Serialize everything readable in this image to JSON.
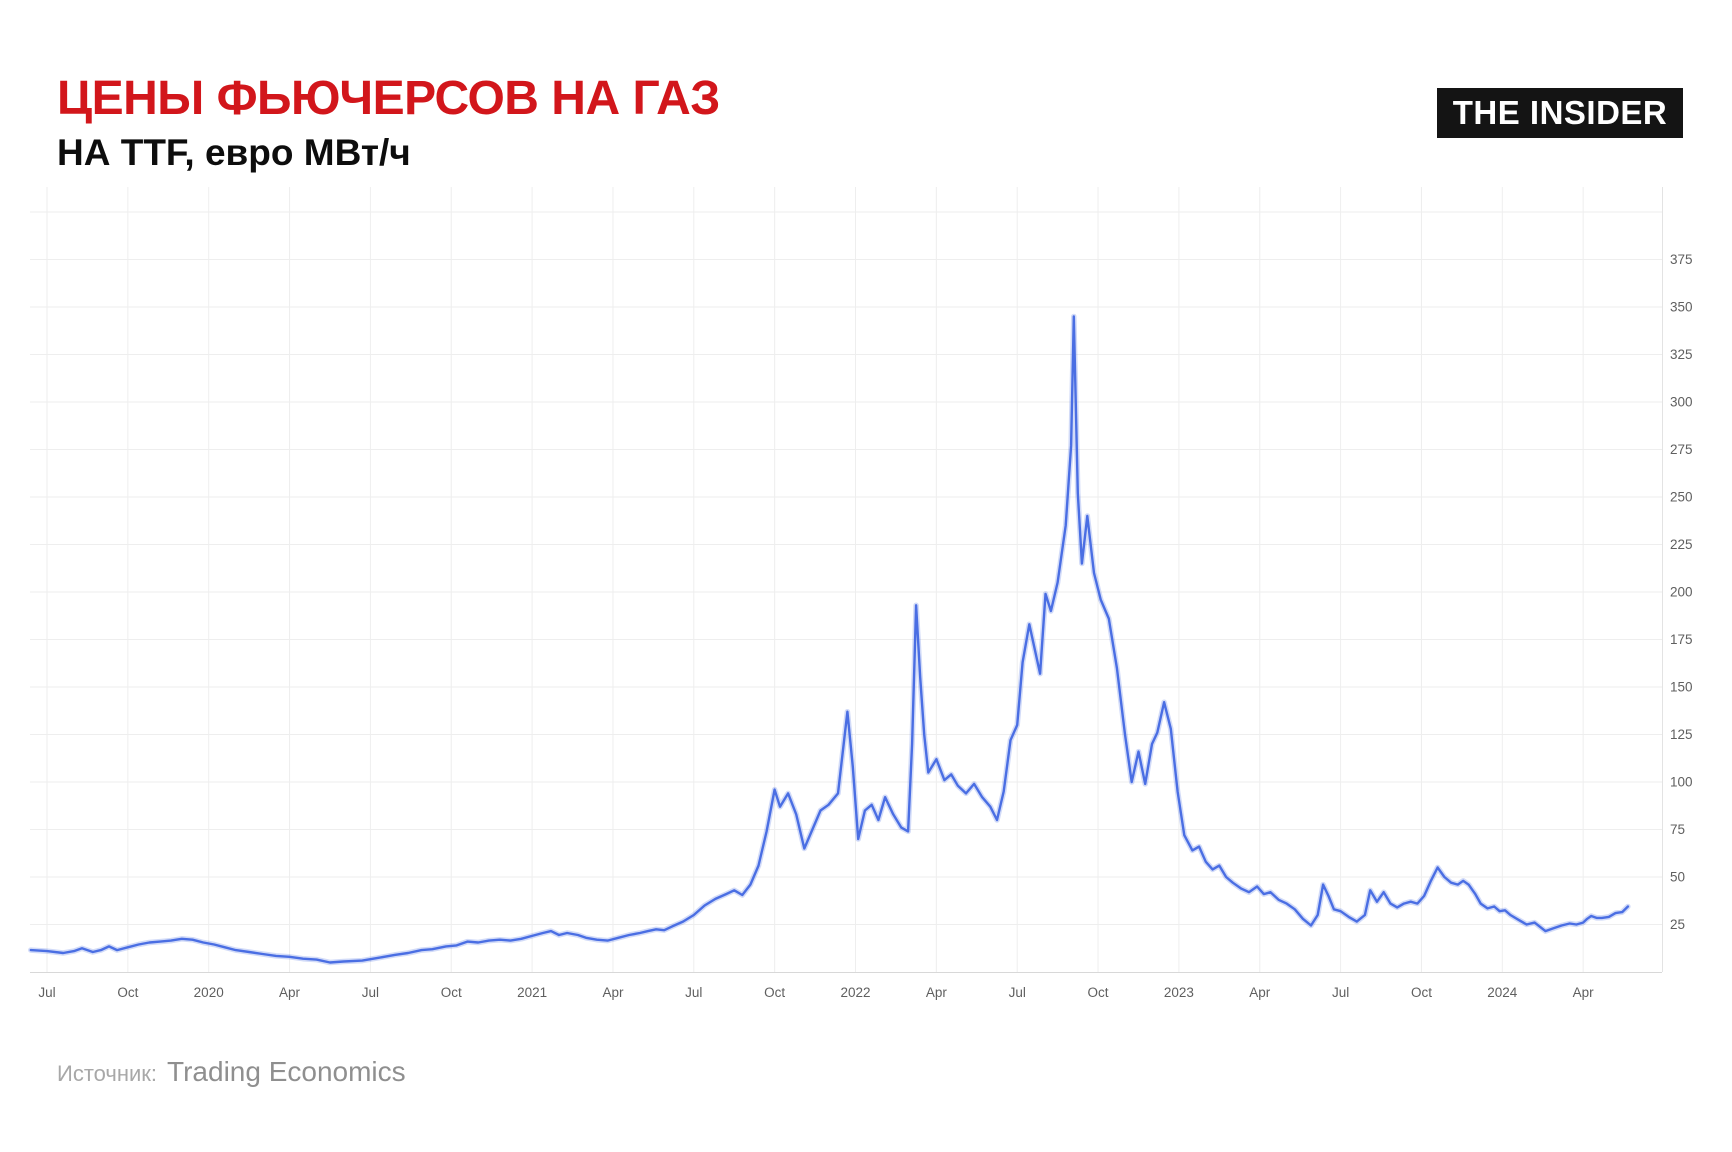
{
  "header": {
    "title": "ЦЕНЫ ФЬЮЧЕРСОВ НА ГАЗ",
    "subtitle": "НА TTF, евро МВт/ч",
    "logo_text": "THE INSIDER"
  },
  "footer": {
    "source_label": "Источник:",
    "source_name": "Trading Economics"
  },
  "colors": {
    "title_red": "#d2161b",
    "line_blue": "#4a6ee3",
    "grid": "#eeeeee",
    "axis_bottom": "#d8d8d8",
    "axis_right": "#e3e3e3",
    "tick_text": "#5f5f5f",
    "logo_bg": "#141414",
    "logo_text": "#ffffff",
    "source_label_color": "#a8a8a8",
    "source_name_color": "#8f8f8f"
  },
  "chart_data": {
    "type": "line",
    "title": "Цены фьючерсов на газ на TTF",
    "ylabel": "евро/МВт·ч",
    "xlabel": "",
    "x_unit": "months since 2019-07-01",
    "ylim": [
      0,
      410
    ],
    "grid": true,
    "legend": "none",
    "y_ticks": [
      25,
      50,
      75,
      100,
      125,
      150,
      175,
      200,
      225,
      250,
      275,
      300,
      325,
      350,
      375
    ],
    "x_ticks": [
      {
        "t": 0,
        "label": "Jul"
      },
      {
        "t": 3,
        "label": "Oct"
      },
      {
        "t": 6,
        "label": "2020"
      },
      {
        "t": 9,
        "label": "Apr"
      },
      {
        "t": 12,
        "label": "Jul"
      },
      {
        "t": 15,
        "label": "Oct"
      },
      {
        "t": 18,
        "label": "2021"
      },
      {
        "t": 21,
        "label": "Apr"
      },
      {
        "t": 24,
        "label": "Jul"
      },
      {
        "t": 27,
        "label": "Oct"
      },
      {
        "t": 30,
        "label": "2022"
      },
      {
        "t": 33,
        "label": "Apr"
      },
      {
        "t": 36,
        "label": "Jul"
      },
      {
        "t": 39,
        "label": "Oct"
      },
      {
        "t": 42,
        "label": "2023"
      },
      {
        "t": 45,
        "label": "Apr"
      },
      {
        "t": 48,
        "label": "Jul"
      },
      {
        "t": 51,
        "label": "Oct"
      },
      {
        "t": 54,
        "label": "2024"
      },
      {
        "t": 57,
        "label": "Apr"
      }
    ],
    "series": [
      {
        "name": "TTF gas futures price, EUR/MWh",
        "points": [
          [
            -0.6,
            11.5
          ],
          [
            0,
            11
          ],
          [
            0.6,
            10
          ],
          [
            1.0,
            11
          ],
          [
            1.3,
            12.5
          ],
          [
            1.7,
            10.5
          ],
          [
            2.0,
            11.5
          ],
          [
            2.3,
            13.5
          ],
          [
            2.6,
            11.5
          ],
          [
            3.0,
            13
          ],
          [
            3.4,
            14.5
          ],
          [
            3.8,
            15.5
          ],
          [
            4.2,
            16
          ],
          [
            4.6,
            16.5
          ],
          [
            5.0,
            17.5
          ],
          [
            5.4,
            17
          ],
          [
            5.8,
            15.5
          ],
          [
            6.2,
            14.5
          ],
          [
            6.6,
            13
          ],
          [
            7.0,
            11.5
          ],
          [
            7.5,
            10.5
          ],
          [
            8.0,
            9.5
          ],
          [
            8.5,
            8.5
          ],
          [
            9.0,
            8
          ],
          [
            9.5,
            7
          ],
          [
            10.0,
            6.5
          ],
          [
            10.5,
            5
          ],
          [
            11.0,
            5.5
          ],
          [
            11.7,
            6
          ],
          [
            12.3,
            7.5
          ],
          [
            12.9,
            9
          ],
          [
            13.4,
            10
          ],
          [
            13.9,
            11.5
          ],
          [
            14.3,
            12
          ],
          [
            14.8,
            13.5
          ],
          [
            15.2,
            14
          ],
          [
            15.6,
            16
          ],
          [
            16.0,
            15.5
          ],
          [
            16.4,
            16.5
          ],
          [
            16.8,
            17
          ],
          [
            17.2,
            16.5
          ],
          [
            17.6,
            17.5
          ],
          [
            18.0,
            19
          ],
          [
            18.4,
            20.5
          ],
          [
            18.7,
            21.5
          ],
          [
            19.0,
            19.5
          ],
          [
            19.3,
            20.5
          ],
          [
            19.7,
            19.5
          ],
          [
            20.0,
            18
          ],
          [
            20.4,
            17
          ],
          [
            20.8,
            16.5
          ],
          [
            21.2,
            18
          ],
          [
            21.6,
            19.5
          ],
          [
            22.0,
            20.5
          ],
          [
            22.3,
            21.5
          ],
          [
            22.6,
            22.5
          ],
          [
            22.9,
            22
          ],
          [
            23.2,
            24
          ],
          [
            23.6,
            26.5
          ],
          [
            24.0,
            30
          ],
          [
            24.4,
            35
          ],
          [
            24.8,
            38.5
          ],
          [
            25.2,
            41
          ],
          [
            25.5,
            43
          ],
          [
            25.8,
            40.5
          ],
          [
            26.1,
            46
          ],
          [
            26.4,
            56
          ],
          [
            26.7,
            74
          ],
          [
            27.0,
            96
          ],
          [
            27.2,
            87
          ],
          [
            27.5,
            94
          ],
          [
            27.8,
            83
          ],
          [
            28.1,
            65
          ],
          [
            28.4,
            75
          ],
          [
            28.7,
            85
          ],
          [
            29.0,
            88
          ],
          [
            29.35,
            94
          ],
          [
            29.7,
            137
          ],
          [
            29.9,
            108
          ],
          [
            30.1,
            70
          ],
          [
            30.35,
            85
          ],
          [
            30.6,
            88
          ],
          [
            30.85,
            80
          ],
          [
            31.1,
            92
          ],
          [
            31.4,
            83
          ],
          [
            31.7,
            76
          ],
          [
            31.95,
            74
          ],
          [
            32.1,
            120
          ],
          [
            32.25,
            193
          ],
          [
            32.4,
            155
          ],
          [
            32.55,
            125
          ],
          [
            32.7,
            105
          ],
          [
            33.0,
            112
          ],
          [
            33.3,
            101
          ],
          [
            33.55,
            104
          ],
          [
            33.8,
            98
          ],
          [
            34.1,
            94
          ],
          [
            34.4,
            99
          ],
          [
            34.7,
            92
          ],
          [
            35.0,
            87
          ],
          [
            35.25,
            80
          ],
          [
            35.5,
            95
          ],
          [
            35.75,
            122
          ],
          [
            36.0,
            130
          ],
          [
            36.2,
            163
          ],
          [
            36.45,
            183
          ],
          [
            36.65,
            170
          ],
          [
            36.85,
            157
          ],
          [
            37.05,
            199
          ],
          [
            37.25,
            190
          ],
          [
            37.5,
            205
          ],
          [
            37.8,
            235
          ],
          [
            38.0,
            277
          ],
          [
            38.1,
            345
          ],
          [
            38.25,
            252
          ],
          [
            38.4,
            215
          ],
          [
            38.6,
            240
          ],
          [
            38.85,
            210
          ],
          [
            39.1,
            196
          ],
          [
            39.4,
            186
          ],
          [
            39.7,
            160
          ],
          [
            40.0,
            125
          ],
          [
            40.25,
            100
          ],
          [
            40.5,
            116
          ],
          [
            40.75,
            99
          ],
          [
            41.0,
            120
          ],
          [
            41.2,
            126
          ],
          [
            41.45,
            142
          ],
          [
            41.7,
            128
          ],
          [
            41.95,
            95
          ],
          [
            42.2,
            72
          ],
          [
            42.5,
            64
          ],
          [
            42.75,
            66
          ],
          [
            43.0,
            58
          ],
          [
            43.25,
            54
          ],
          [
            43.5,
            56
          ],
          [
            43.75,
            50
          ],
          [
            44.0,
            47
          ],
          [
            44.3,
            44
          ],
          [
            44.6,
            42
          ],
          [
            44.9,
            45
          ],
          [
            45.15,
            41
          ],
          [
            45.4,
            42
          ],
          [
            45.7,
            38
          ],
          [
            46.0,
            36
          ],
          [
            46.3,
            33
          ],
          [
            46.6,
            28
          ],
          [
            46.9,
            24.5
          ],
          [
            47.15,
            30
          ],
          [
            47.35,
            46
          ],
          [
            47.55,
            40
          ],
          [
            47.75,
            33
          ],
          [
            48.0,
            32
          ],
          [
            48.3,
            29
          ],
          [
            48.6,
            26.5
          ],
          [
            48.9,
            30
          ],
          [
            49.1,
            43
          ],
          [
            49.35,
            37
          ],
          [
            49.6,
            42
          ],
          [
            49.85,
            36
          ],
          [
            50.1,
            34
          ],
          [
            50.35,
            36
          ],
          [
            50.6,
            37
          ],
          [
            50.85,
            36
          ],
          [
            51.1,
            40
          ],
          [
            51.35,
            48
          ],
          [
            51.6,
            55
          ],
          [
            51.85,
            50
          ],
          [
            52.1,
            47
          ],
          [
            52.35,
            46
          ],
          [
            52.55,
            48
          ],
          [
            52.75,
            46
          ],
          [
            53.0,
            41
          ],
          [
            53.2,
            36
          ],
          [
            53.45,
            33.5
          ],
          [
            53.7,
            34.5
          ],
          [
            53.9,
            32
          ],
          [
            54.1,
            32.5
          ],
          [
            54.3,
            30
          ],
          [
            54.6,
            27.5
          ],
          [
            54.9,
            25
          ],
          [
            55.2,
            26
          ],
          [
            55.6,
            21.5
          ],
          [
            55.9,
            23
          ],
          [
            56.2,
            24.5
          ],
          [
            56.5,
            25.5
          ],
          [
            56.75,
            25
          ],
          [
            57.0,
            26
          ],
          [
            57.15,
            28
          ],
          [
            57.3,
            29.5
          ],
          [
            57.5,
            28.5
          ],
          [
            57.7,
            28.5
          ],
          [
            57.95,
            29
          ],
          [
            58.2,
            31
          ],
          [
            58.45,
            31.5
          ],
          [
            58.66,
            34.5
          ]
        ]
      }
    ]
  }
}
